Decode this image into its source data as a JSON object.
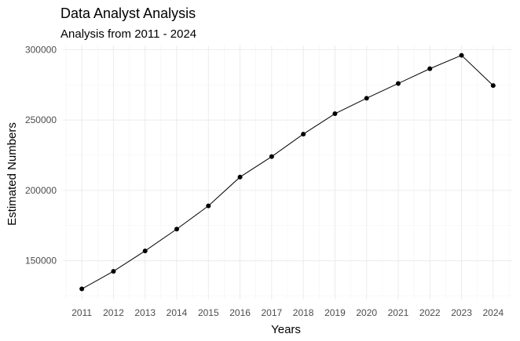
{
  "chart_data": {
    "type": "line",
    "title": "Data Analyst Analysis",
    "subtitle": "Analysis from 2011 - 2024",
    "xlabel": "Years",
    "ylabel": "Estimated Numbers",
    "x": [
      2011,
      2012,
      2013,
      2014,
      2015,
      2016,
      2017,
      2018,
      2019,
      2020,
      2021,
      2022,
      2023,
      2024
    ],
    "series": [
      {
        "values": [
          130000,
          142500,
          157000,
          172500,
          189000,
          209500,
          224000,
          240000,
          254500,
          265500,
          276000,
          286500,
          296000,
          274500
        ]
      }
    ],
    "x_ticks": [
      "2011",
      "2012",
      "2013",
      "2014",
      "2015",
      "2016",
      "2017",
      "2018",
      "2019",
      "2020",
      "2021",
      "2022",
      "2023",
      "2024"
    ],
    "y_ticks": [
      150000,
      200000,
      250000,
      300000
    ],
    "y_tick_labels": [
      "150000",
      "200000",
      "250000",
      "300000"
    ],
    "ylim": [
      122500,
      303000
    ],
    "xlim": [
      2010.4,
      2024.6
    ],
    "grid": true,
    "line_color": "#000000",
    "point_color": "#000000",
    "grid_color": "#ebebeb"
  }
}
